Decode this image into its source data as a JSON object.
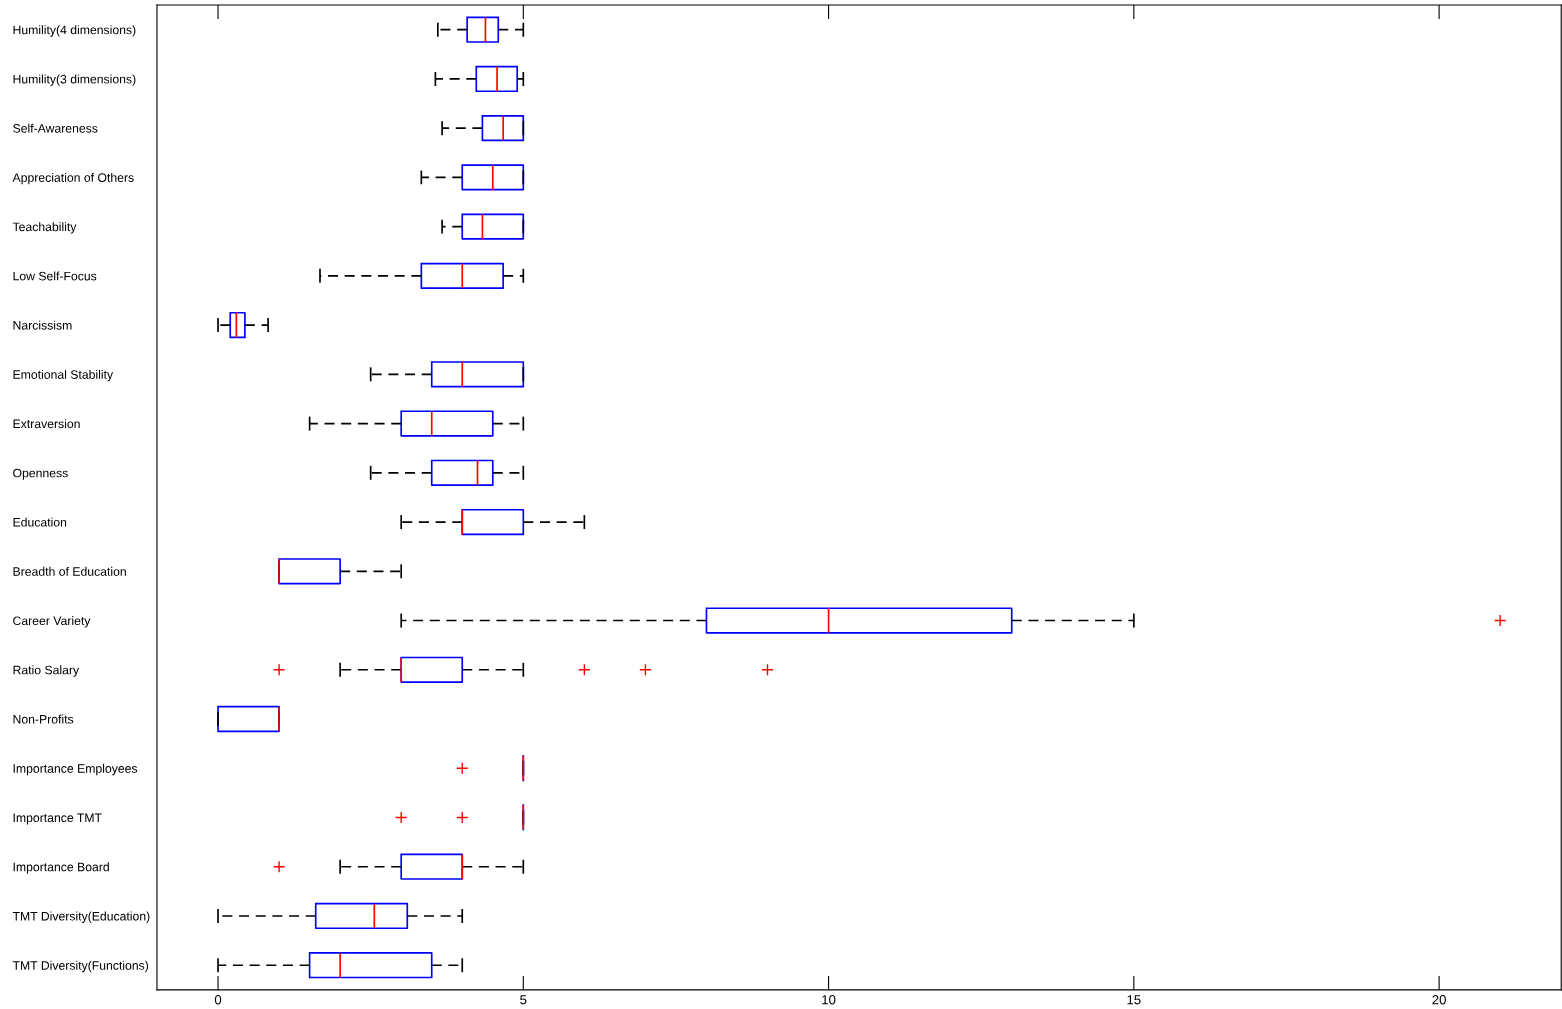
{
  "chart_data": {
    "type": "box",
    "orientation": "horizontal",
    "color": "#0000ff",
    "grid": false,
    "categories": [
      "Humility(4 dimensions)",
      "Humility(3 dimensions)",
      "Self-Awareness",
      "Appreciation of Others",
      "Teachability",
      "Low Self-Focus",
      "Narcissism",
      "Emotional Stability",
      "Extraversion",
      "Openness",
      "Education",
      "Breadth of Education",
      "Career Variety",
      "Ratio Salary",
      "Non-Profits",
      "Importance Employees",
      "Importance TMT",
      "Importance Board",
      "TMT Diversity(Education)",
      "TMT Diversity(Functions)"
    ],
    "xlim": [
      -1,
      22
    ],
    "xticks": [
      0,
      5,
      10,
      15,
      20
    ],
    "boxes": [
      {
        "low": 3.6,
        "q1": 4.08,
        "median": 4.38,
        "q3": 4.59,
        "high": 5
      },
      {
        "low": 3.56,
        "q1": 4.23,
        "median": 4.57,
        "q3": 4.9,
        "high": 5
      },
      {
        "low": 3.67,
        "q1": 4.33,
        "median": 4.67,
        "q3": 5,
        "high": 5
      },
      {
        "low": 3.33,
        "q1": 4,
        "median": 4.5,
        "q3": 5,
        "high": 5
      },
      {
        "low": 3.67,
        "q1": 4,
        "median": 4.33,
        "q3": 5,
        "high": 5
      },
      {
        "low": 1.67,
        "q1": 3.33,
        "median": 4,
        "q3": 4.67,
        "high": 5
      },
      {
        "low": 0,
        "q1": 0.2,
        "median": 0.3,
        "q3": 0.44,
        "high": 0.82
      },
      {
        "low": 2.5,
        "q1": 3.5,
        "median": 4,
        "q3": 5,
        "high": 5
      },
      {
        "low": 1.5,
        "q1": 3,
        "median": 3.5,
        "q3": 4.5,
        "high": 5
      },
      {
        "low": 2.5,
        "q1": 3.5,
        "median": 4.25,
        "q3": 4.5,
        "high": 5
      },
      {
        "low": 3,
        "q1": 4,
        "median": 4,
        "q3": 5,
        "high": 6
      },
      {
        "low": 1,
        "q1": 1,
        "median": 1,
        "q3": 2,
        "high": 3
      },
      {
        "low": 3,
        "q1": 8,
        "median": 10,
        "q3": 13,
        "high": 15,
        "outliers": [
          21
        ]
      },
      {
        "low": 2,
        "q1": 3,
        "median": 3,
        "q3": 4,
        "high": 5,
        "outliers": [
          1,
          6,
          7,
          9
        ]
      },
      {
        "low": 0,
        "q1": 0,
        "median": 1,
        "q3": 1,
        "high": 1
      },
      {
        "low": 5,
        "q1": 5,
        "median": 5,
        "q3": 5,
        "high": 5,
        "outliers": [
          4
        ]
      },
      {
        "low": 5,
        "q1": 5,
        "median": 5,
        "q3": 5,
        "high": 5,
        "outliers": [
          3,
          4
        ]
      },
      {
        "low": 2,
        "q1": 3,
        "median": 4,
        "q3": 4,
        "high": 5,
        "outliers": [
          1
        ]
      },
      {
        "low": 0,
        "q1": 1.6,
        "median": 2.56,
        "q3": 3.1,
        "high": 4
      },
      {
        "low": 0,
        "q1": 1.5,
        "median": 2,
        "q3": 3.5,
        "high": 4
      }
    ]
  }
}
